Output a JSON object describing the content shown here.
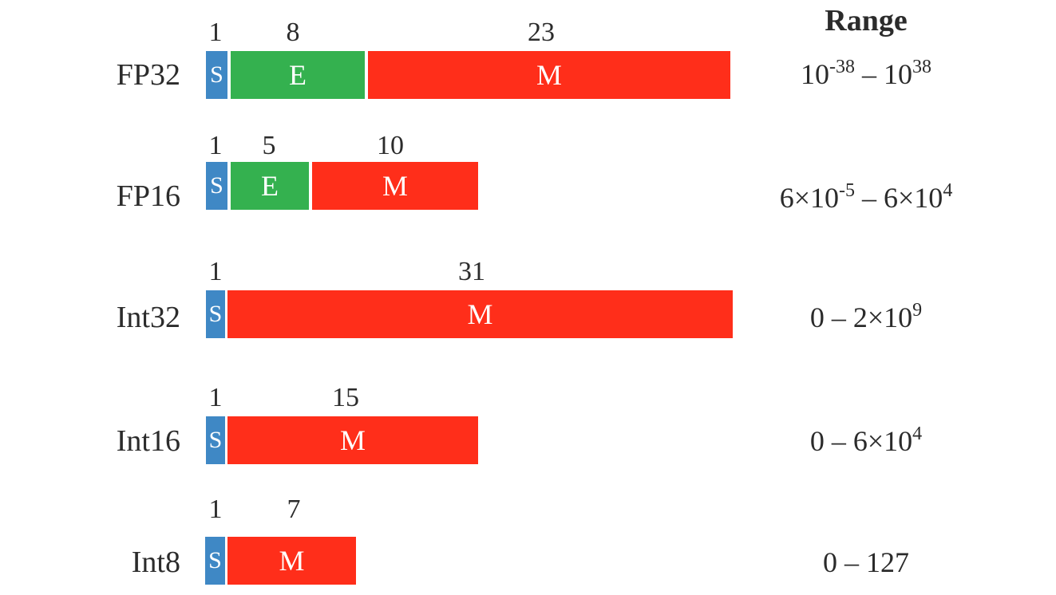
{
  "range_header": "Range",
  "colors": {
    "sign": "#3f88c5",
    "exponent": "#34b14f",
    "mantissa": "#ff2e1a"
  },
  "formats": [
    {
      "name": "FP32",
      "sign_bits": "1",
      "sign_label": "S",
      "exp_bits": "8",
      "exp_label": "E",
      "mant_bits": "23",
      "mant_label": "M",
      "range_min_base": "10",
      "range_min_exp": "-38",
      "range_sep": " – ",
      "range_max_base": "10",
      "range_max_exp": "38"
    },
    {
      "name": "FP16",
      "sign_bits": "1",
      "sign_label": "S",
      "exp_bits": "5",
      "exp_label": "E",
      "mant_bits": "10",
      "mant_label": "M",
      "range_min_base": "6×10",
      "range_min_exp": "-5",
      "range_sep": " – ",
      "range_max_base": "6×10",
      "range_max_exp": "4"
    },
    {
      "name": "Int32",
      "sign_bits": "1",
      "sign_label": "S",
      "mant_bits": "31",
      "mant_label": "M",
      "range_prefix": "0 – 2×10",
      "range_exp": "9"
    },
    {
      "name": "Int16",
      "sign_bits": "1",
      "sign_label": "S",
      "mant_bits": "15",
      "mant_label": "M",
      "range_prefix": "0 – 6×10",
      "range_exp": "4"
    },
    {
      "name": "Int8",
      "sign_bits": "1",
      "sign_label": "S",
      "mant_bits": "7",
      "mant_label": "M",
      "range_prefix": "0 – 127"
    }
  ]
}
